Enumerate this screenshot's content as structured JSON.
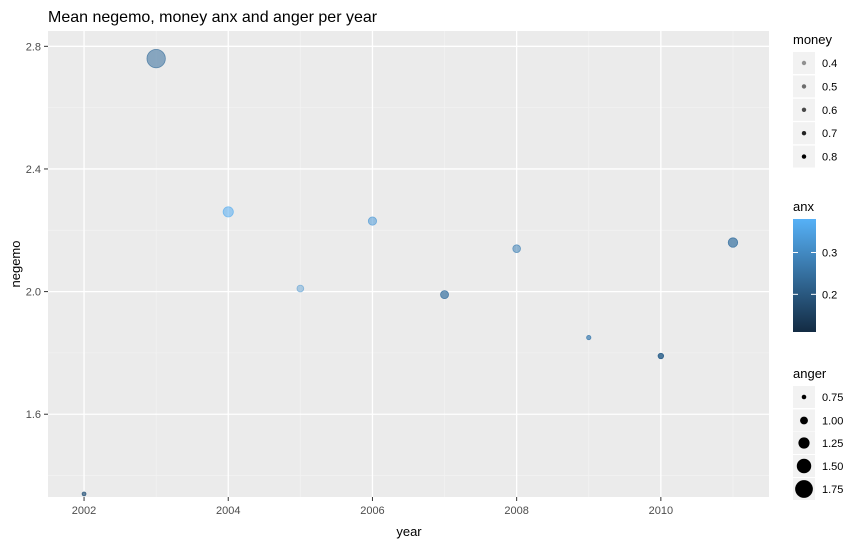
{
  "chart_data": {
    "type": "scatter",
    "title": "Mean negemo, money anx and anger per year",
    "xlabel": "year",
    "ylabel": "negemo",
    "xlim": [
      2001.5,
      2011.5
    ],
    "ylim": [
      1.33,
      2.85
    ],
    "x_ticks": [
      2002,
      2004,
      2006,
      2008,
      2010
    ],
    "x_tick_labels": [
      "2002",
      "2004",
      "2006",
      "2008",
      "2010"
    ],
    "y_ticks": [
      1.6,
      2.0,
      2.4,
      2.8
    ],
    "y_tick_labels": [
      "1.6",
      "2.0",
      "2.4",
      "2.8"
    ],
    "grid": true,
    "points": [
      {
        "year": 2002,
        "negemo": 1.34,
        "money": 0.6,
        "anx": 0.19,
        "anger": 0.7
      },
      {
        "year": 2003,
        "negemo": 2.76,
        "money": 0.5,
        "anx": 0.24,
        "anger": 1.8
      },
      {
        "year": 2004,
        "negemo": 2.26,
        "money": 0.5,
        "anx": 0.37,
        "anger": 1.18
      },
      {
        "year": 2005,
        "negemo": 2.01,
        "money": 0.4,
        "anx": 0.32,
        "anger": 0.92
      },
      {
        "year": 2006,
        "negemo": 2.23,
        "money": 0.5,
        "anx": 0.33,
        "anger": 1.03
      },
      {
        "year": 2007,
        "negemo": 1.99,
        "money": 0.6,
        "anx": 0.25,
        "anger": 1.01
      },
      {
        "year": 2008,
        "negemo": 2.14,
        "money": 0.5,
        "anx": 0.28,
        "anger": 0.99
      },
      {
        "year": 2009,
        "negemo": 1.85,
        "money": 0.6,
        "anx": 0.27,
        "anger": 0.73
      },
      {
        "year": 2010,
        "negemo": 1.79,
        "money": 0.7,
        "anx": 0.22,
        "anger": 0.82
      },
      {
        "year": 2011,
        "negemo": 2.16,
        "money": 0.6,
        "anx": 0.25,
        "anger": 1.12
      }
    ],
    "legends": {
      "position": "right",
      "money": {
        "title": "money",
        "values": [
          0.4,
          0.5,
          0.6,
          0.7,
          0.8
        ],
        "labels": [
          "0.4",
          "0.5",
          "0.6",
          "0.7",
          "0.8"
        ],
        "alpha_range": [
          0.4,
          1.0
        ]
      },
      "anx": {
        "title": "anx",
        "ticks": [
          0.2,
          0.3
        ],
        "tick_labels": [
          "0.2",
          "0.3"
        ],
        "range": [
          0.11,
          0.38
        ],
        "low_color": "#132b43",
        "high_color": "#56b1f7"
      },
      "anger": {
        "title": "anger",
        "values": [
          0.75,
          1.0,
          1.25,
          1.5,
          1.75
        ],
        "labels": [
          "0.75",
          "1.00",
          "1.25",
          "1.50",
          "1.75"
        ]
      }
    },
    "colors": {
      "panel_background": "#ebebeb",
      "grid_major": "#ffffff",
      "grid_minor": "#f2f2f2",
      "legend_key_background": "#f2f2f2"
    }
  }
}
